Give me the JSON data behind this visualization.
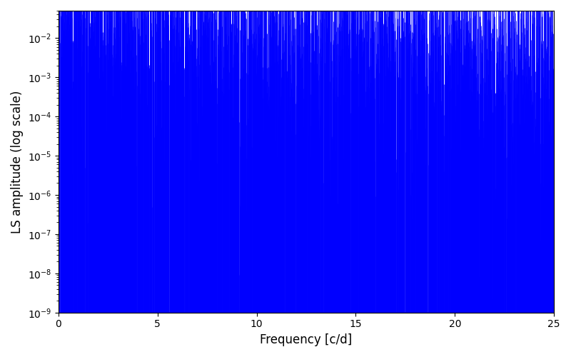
{
  "xlabel": "Frequency [c/d]",
  "ylabel": "LS amplitude (log scale)",
  "line_color": "#0000ff",
  "xlim": [
    0,
    25
  ],
  "ylim": [
    1e-09,
    0.05
  ],
  "xticks": [
    0,
    5,
    10,
    15,
    20,
    25
  ],
  "figsize": [
    8.0,
    5.0
  ],
  "dpi": 100,
  "seed": 42,
  "freq_max": 25.0,
  "lw": 0.5,
  "n_lines": 6000,
  "envelope_peak": 0.015,
  "envelope_decay": 0.12,
  "noise_log_std": 1.6,
  "null_prob": 0.08,
  "null_depth_log": -4.0,
  "background": "#ffffff"
}
